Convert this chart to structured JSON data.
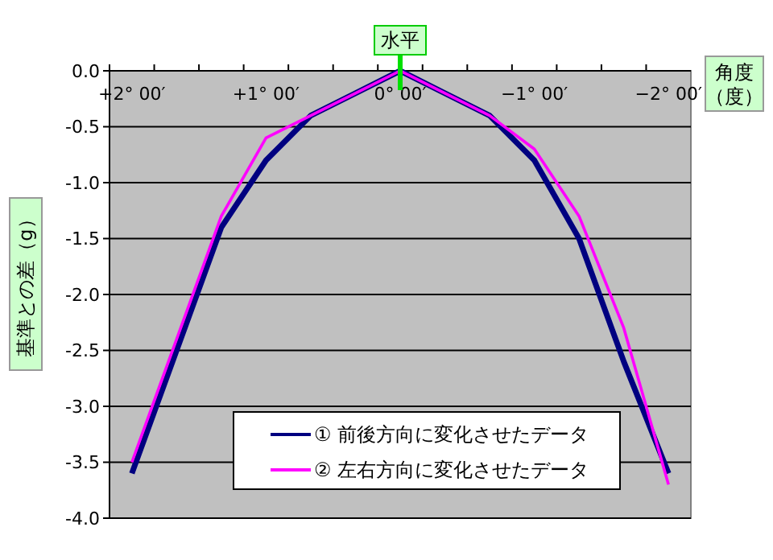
{
  "chart_data": {
    "type": "line",
    "xlabel": "角度（度）",
    "ylabel": "基準との差（g）",
    "categories": [
      "+2° 00′",
      null,
      null,
      "+1° 00′",
      null,
      null,
      "0° 00′",
      null,
      null,
      "−1° 00′",
      null,
      null,
      "−2° 00′"
    ],
    "series": [
      {
        "name": "① 前後方向に変化させたデータ",
        "color": "#000080",
        "values": [
          -3.6,
          -2.5,
          -1.4,
          -0.8,
          -0.4,
          -0.2,
          0,
          -0.2,
          -0.4,
          -0.8,
          -1.5,
          -2.6,
          -3.6
        ]
      },
      {
        "name": "② 左右方向に変化させたデータ",
        "color": "#ff00ff",
        "values": [
          -3.5,
          -2.4,
          -1.3,
          -0.6,
          -0.4,
          -0.2,
          0,
          -0.2,
          -0.4,
          -0.7,
          -1.3,
          -2.3,
          -3.7
        ]
      }
    ],
    "ylim": [
      -4,
      0
    ],
    "yticks": [
      {
        "value": 0,
        "label": "0.0"
      },
      {
        "value": -0.5,
        "label": "-0.5"
      },
      {
        "value": -1,
        "label": "-1.0"
      },
      {
        "value": -1.5,
        "label": "-1.5"
      },
      {
        "value": -2,
        "label": "-2.0"
      },
      {
        "value": -2.5,
        "label": "-2.5"
      },
      {
        "value": -3,
        "label": "-3.0"
      },
      {
        "value": -3.5,
        "label": "-3.5"
      },
      {
        "value": -4,
        "label": "-4.0"
      }
    ],
    "annotations": [
      {
        "text": "水平",
        "x": "0° 00′",
        "y": 0
      }
    ],
    "grid": "y",
    "legend": "bottom",
    "marker": "none",
    "line_style": "solid"
  }
}
